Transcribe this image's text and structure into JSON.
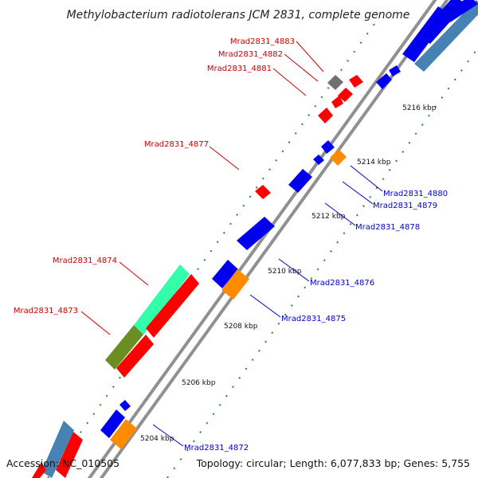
{
  "title": "Methylobacterium radiotolerans JCM 2831, complete genome",
  "footer": {
    "accession": "Accession: NC_010505",
    "topology": "Topology: circular; Length: 6,077,833 bp; Genes: 5,755"
  },
  "ticks": [
    "5204 kbp",
    "5206 kbp",
    "5208 kbp",
    "5210 kbp",
    "5212 kbp",
    "5214 kbp",
    "5216 kbp"
  ],
  "labels": {
    "mrad4883": "Mrad2831_4883",
    "mrad4882": "Mrad2831_4882",
    "mrad4881": "Mrad2831_4881",
    "mrad4877": "Mrad2831_4877",
    "mrad4874": "Mrad2831_4874",
    "mrad4873": "Mrad2831_4873",
    "mrad4880": "Mrad2831_4880",
    "mrad4879": "Mrad2831_4879",
    "mrad4878": "Mrad2831_4878",
    "mrad4876": "Mrad2831_4876",
    "mrad4875": "Mrad2831_4875",
    "mrad4872": "Mrad2831_4872"
  },
  "colors": {
    "forward_cds": "#ff0000",
    "reverse_cds": "#0000ee",
    "rna_orange": "#ff8c00",
    "pseudo_gray": "#707070",
    "mint": "#33ffaa",
    "olive": "#6b8e23",
    "steel_blue": "#4682b4",
    "backbone": "#808080",
    "tick_green": "#228b22"
  }
}
